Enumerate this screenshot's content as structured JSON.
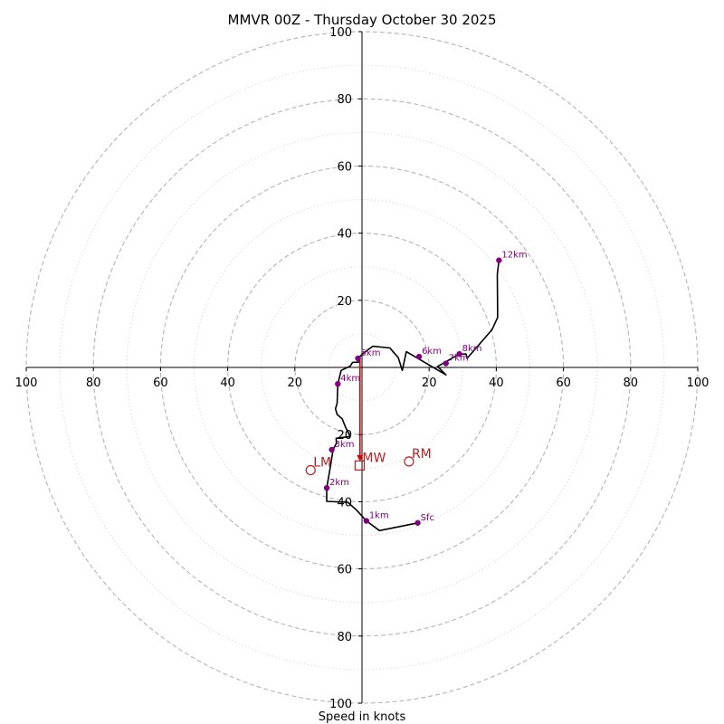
{
  "chart_data": {
    "type": "hodograph",
    "title": "MMVR 00Z - Thursday October 30 2025",
    "xlabel": "Speed in knots",
    "units": "knots",
    "range": [
      -100,
      100
    ],
    "ring_major": [
      20,
      40,
      60,
      80,
      100
    ],
    "ring_minor": [
      10,
      30,
      50,
      70,
      90
    ],
    "x_tick_labels": [
      {
        "value": -100,
        "label": "100"
      },
      {
        "value": -80,
        "label": "80"
      },
      {
        "value": -60,
        "label": "60"
      },
      {
        "value": -40,
        "label": "40"
      },
      {
        "value": -20,
        "label": "20"
      },
      {
        "value": 20,
        "label": "20"
      },
      {
        "value": 40,
        "label": "40"
      },
      {
        "value": 60,
        "label": "60"
      },
      {
        "value": 80,
        "label": "80"
      },
      {
        "value": 100,
        "label": "100"
      }
    ],
    "y_tick_labels": [
      {
        "value": 100,
        "label": "100"
      },
      {
        "value": 80,
        "label": "80"
      },
      {
        "value": 60,
        "label": "60"
      },
      {
        "value": 40,
        "label": "40"
      },
      {
        "value": 20,
        "label": "20"
      },
      {
        "value": -20,
        "label": "20"
      },
      {
        "value": -40,
        "label": "40"
      },
      {
        "value": -60,
        "label": "60"
      },
      {
        "value": -80,
        "label": "80"
      },
      {
        "value": -100,
        "label": "100"
      }
    ],
    "profile": [
      [
        16.6,
        -46.3
      ],
      [
        5.2,
        -48.6
      ],
      [
        1.3,
        -45.7
      ],
      [
        -1.7,
        -42.4
      ],
      [
        -4.2,
        -40.2
      ],
      [
        -10.5,
        -39.9
      ],
      [
        -10.5,
        -35.9
      ],
      [
        -9.7,
        -31.2
      ],
      [
        -8.6,
        -24.5
      ],
      [
        -7.6,
        -22.5
      ],
      [
        -7.7,
        -21.1
      ],
      [
        -3.6,
        -20.6
      ],
      [
        -3.9,
        -19.7
      ],
      [
        -4.9,
        -17.8
      ],
      [
        -5.9,
        -15.3
      ],
      [
        -7.4,
        -14.0
      ],
      [
        -7.9,
        -12.3
      ],
      [
        -7.4,
        -10.7
      ],
      [
        -7.2,
        -4.9
      ],
      [
        -6.2,
        -0.9
      ],
      [
        -3.5,
        0.4
      ],
      [
        -2.8,
        1.5
      ],
      [
        -0.8,
        1.6
      ],
      [
        -0.9,
        3.2
      ],
      [
        -1.2,
        2.7
      ],
      [
        0.5,
        4.3
      ],
      [
        3.2,
        6.3
      ],
      [
        8.3,
        5.8
      ],
      [
        10.8,
        2.9
      ],
      [
        12.0,
        -0.9
      ],
      [
        13.2,
        4.7
      ],
      [
        25.0,
        -2.2
      ],
      [
        22.5,
        0.3
      ],
      [
        29.0,
        4.0
      ],
      [
        31.0,
        4.0
      ],
      [
        31.3,
        2.7
      ],
      [
        38.7,
        11.2
      ],
      [
        40.4,
        14.9
      ],
      [
        40.3,
        27.7
      ],
      [
        40.8,
        31.9
      ]
    ],
    "height_points": [
      {
        "label": "Sfc",
        "u": 16.6,
        "v": -46.3
      },
      {
        "label": "1km",
        "u": 1.3,
        "v": -45.7
      },
      {
        "label": "2km",
        "u": -10.5,
        "v": -35.9
      },
      {
        "label": "3km",
        "u": -9.0,
        "v": -24.5
      },
      {
        "label": "4km",
        "u": -7.2,
        "v": -4.9
      },
      {
        "label": "5km",
        "u": -1.2,
        "v": 2.7
      },
      {
        "label": "6km",
        "u": 17.0,
        "v": 3.2
      },
      {
        "label": "7km",
        "u": 25.0,
        "v": 1.2
      },
      {
        "label": "8km",
        "u": 29.0,
        "v": 4.0
      },
      {
        "label": "12km",
        "u": 40.8,
        "v": 31.9
      }
    ],
    "storm_motion": [
      {
        "label": "RM",
        "u": 14.0,
        "v": -28.0,
        "marker": "circle"
      },
      {
        "label": "LM",
        "u": -15.3,
        "v": -30.6,
        "marker": "circle"
      },
      {
        "label": "MW",
        "u": -0.7,
        "v": -29.2,
        "marker": "square"
      }
    ],
    "shear_vector": {
      "from": [
        -0.6,
        2.8
      ],
      "to": [
        -0.6,
        -28.0
      ]
    },
    "colors": {
      "profile": "#000000",
      "points": "#800080",
      "storm": "#b22222",
      "shear": "#d40000",
      "ring_major": "#b4b4b4",
      "ring_minor": "#cdcdcd"
    }
  }
}
